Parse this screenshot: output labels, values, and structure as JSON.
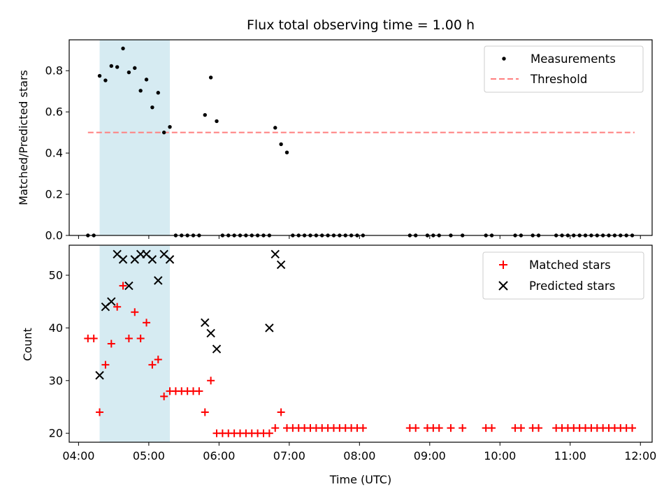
{
  "figure": {
    "title": "Flux total observing time = 1.00 h",
    "xlabel": "Time (UTC)"
  },
  "colors": {
    "highlight": "#add8e6",
    "threshold": "#ff7f7f",
    "matched": "#ff0000",
    "predicted": "#000000",
    "measurement": "#000000"
  },
  "chart_data": [
    {
      "type": "scatter",
      "ylabel": "Matched/Predicted stars",
      "ylim": [
        0,
        0.95
      ],
      "xlim": [
        "03:52",
        "12:10"
      ],
      "yticks": [
        0.0,
        0.2,
        0.4,
        0.6,
        0.8
      ],
      "ytick_labels": [
        "0.0",
        "0.2",
        "0.4",
        "0.6",
        "0.8"
      ],
      "highlight_span": [
        "04:18",
        "05:18"
      ],
      "legend_position": "upper right",
      "legend": [
        "Measurements",
        "Threshold"
      ],
      "threshold": {
        "name": "Threshold",
        "y": 0.5,
        "x_range": [
          "04:08",
          "11:55"
        ]
      },
      "series": [
        {
          "name": "Measurements",
          "x": [
            "04:08",
            "04:13",
            "04:18",
            "04:23",
            "04:28",
            "04:33",
            "04:38",
            "04:43",
            "04:48",
            "04:53",
            "04:58",
            "05:03",
            "05:08",
            "05:13",
            "05:18",
            "05:23",
            "05:28",
            "05:33",
            "05:38",
            "05:43",
            "05:48",
            "05:53",
            "05:58",
            "06:03",
            "06:08",
            "06:13",
            "06:18",
            "06:23",
            "06:28",
            "06:33",
            "06:38",
            "06:43",
            "06:48",
            "06:53",
            "06:58",
            "07:03",
            "07:08",
            "07:13",
            "07:18",
            "07:23",
            "07:28",
            "07:33",
            "07:38",
            "07:43",
            "07:48",
            "07:53",
            "07:58",
            "08:03",
            "08:43",
            "08:48",
            "08:58",
            "09:03",
            "09:08",
            "09:18",
            "09:28",
            "09:48",
            "09:53",
            "10:13",
            "10:18",
            "10:28",
            "10:33",
            "10:48",
            "10:53",
            "10:58",
            "11:03",
            "11:08",
            "11:13",
            "11:18",
            "11:23",
            "11:28",
            "11:33",
            "11:38",
            "11:43",
            "11:48",
            "11:53"
          ],
          "y": [
            0.0,
            0.0,
            0.775,
            0.753,
            0.823,
            0.818,
            0.908,
            0.792,
            0.813,
            0.703,
            0.757,
            0.622,
            0.693,
            0.5,
            0.527,
            0.0,
            0.0,
            0.0,
            0.0,
            0.0,
            0.585,
            0.767,
            0.555,
            0.0,
            0.0,
            0.0,
            0.0,
            0.0,
            0.0,
            0.0,
            0.0,
            0.0,
            0.523,
            0.443,
            0.403,
            0.0,
            0.0,
            0.0,
            0.0,
            0.0,
            0.0,
            0.0,
            0.0,
            0.0,
            0.0,
            0.0,
            0.0,
            0.0,
            0.0,
            0.0,
            0.0,
            0.0,
            0.0,
            0.0,
            0.0,
            0.0,
            0.0,
            0.0,
            0.0,
            0.0,
            0.0,
            0.0,
            0.0,
            0.0,
            0.0,
            0.0,
            0.0,
            0.0,
            0.0,
            0.0,
            0.0,
            0.0,
            0.0,
            0.0,
            0.0
          ]
        }
      ]
    },
    {
      "type": "scatter",
      "ylabel": "Count",
      "ylim": [
        18.3,
        55.7
      ],
      "xlim": [
        "03:52",
        "12:10"
      ],
      "yticks": [
        20,
        30,
        40,
        50
      ],
      "ytick_labels": [
        "20",
        "30",
        "40",
        "50"
      ],
      "xticks": [
        "04:00",
        "05:00",
        "06:00",
        "07:00",
        "08:00",
        "09:00",
        "10:00",
        "11:00",
        "12:00"
      ],
      "highlight_span": [
        "04:18",
        "05:18"
      ],
      "legend_position": "upper right",
      "legend": [
        "Matched stars",
        "Predicted stars"
      ],
      "series": [
        {
          "name": "Matched stars",
          "marker": "plus",
          "x": [
            "04:08",
            "04:13",
            "04:18",
            "04:23",
            "04:28",
            "04:33",
            "04:38",
            "04:43",
            "04:48",
            "04:53",
            "04:58",
            "05:03",
            "05:08",
            "05:13",
            "05:18",
            "05:23",
            "05:28",
            "05:33",
            "05:38",
            "05:43",
            "05:48",
            "05:53",
            "05:58",
            "06:03",
            "06:08",
            "06:13",
            "06:18",
            "06:23",
            "06:28",
            "06:33",
            "06:38",
            "06:43",
            "06:48",
            "06:53",
            "06:58",
            "07:03",
            "07:08",
            "07:13",
            "07:18",
            "07:23",
            "07:28",
            "07:33",
            "07:38",
            "07:43",
            "07:48",
            "07:53",
            "07:58",
            "08:03",
            "08:43",
            "08:48",
            "08:58",
            "09:03",
            "09:08",
            "09:18",
            "09:28",
            "09:48",
            "09:53",
            "10:13",
            "10:18",
            "10:28",
            "10:33",
            "10:48",
            "10:53",
            "10:58",
            "11:03",
            "11:08",
            "11:13",
            "11:18",
            "11:23",
            "11:28",
            "11:33",
            "11:38",
            "11:43",
            "11:48",
            "11:53"
          ],
          "y": [
            38,
            38,
            24,
            33,
            37,
            44,
            48,
            38,
            43,
            38,
            41,
            33,
            34,
            27,
            28,
            28,
            28,
            28,
            28,
            28,
            24,
            30,
            20,
            20,
            20,
            20,
            20,
            20,
            20,
            20,
            20,
            20,
            21,
            24,
            21,
            21,
            21,
            21,
            21,
            21,
            21,
            21,
            21,
            21,
            21,
            21,
            21,
            21,
            21,
            21,
            21,
            21,
            21,
            21,
            21,
            21,
            21,
            21,
            21,
            21,
            21,
            21,
            21,
            21,
            21,
            21,
            21,
            21,
            21,
            21,
            21,
            21,
            21,
            21,
            21
          ]
        },
        {
          "name": "Predicted stars",
          "marker": "x",
          "x": [
            "04:18",
            "04:23",
            "04:28",
            "04:33",
            "04:38",
            "04:43",
            "04:48",
            "04:53",
            "04:58",
            "05:03",
            "05:08",
            "05:13",
            "05:18",
            "05:48",
            "05:53",
            "05:58",
            "06:43",
            "06:48",
            "06:53"
          ],
          "y": [
            31,
            44,
            45,
            54,
            53,
            48,
            53,
            54,
            54,
            53,
            49,
            54,
            53,
            41,
            39,
            36,
            40,
            54,
            52
          ]
        }
      ]
    }
  ]
}
